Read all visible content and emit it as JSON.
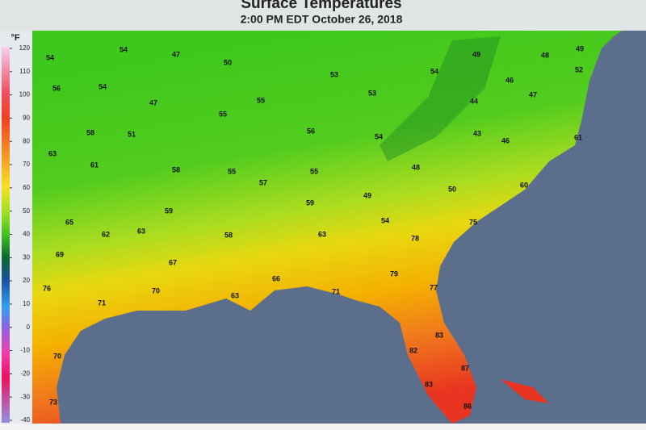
{
  "header": {
    "title": "Surface Temperatures",
    "subtitle": "2:00 PM EDT October 26, 2018"
  },
  "legend": {
    "unit": "°F",
    "ticks": [
      120,
      110,
      100,
      90,
      80,
      70,
      60,
      50,
      40,
      30,
      20,
      10,
      0,
      -10,
      -20,
      -30,
      -40
    ]
  },
  "stations": [
    "54",
    "54",
    "47",
    "50",
    "53",
    "54",
    "49",
    "48",
    "49",
    "52",
    "56",
    "54",
    "47",
    "55",
    "55",
    "53",
    "46",
    "47",
    "44",
    "58",
    "51",
    "56",
    "54",
    "43",
    "46",
    "61",
    "63",
    "61",
    "58",
    "55",
    "57",
    "55",
    "48",
    "50",
    "60",
    "49",
    "59",
    "65",
    "62",
    "63",
    "59",
    "58",
    "63",
    "54",
    "75",
    "78",
    "69",
    "67",
    "79",
    "66",
    "77",
    "71",
    "70",
    "63",
    "76",
    "71",
    "83",
    "82",
    "70",
    "87",
    "83",
    "73",
    "86"
  ]
}
